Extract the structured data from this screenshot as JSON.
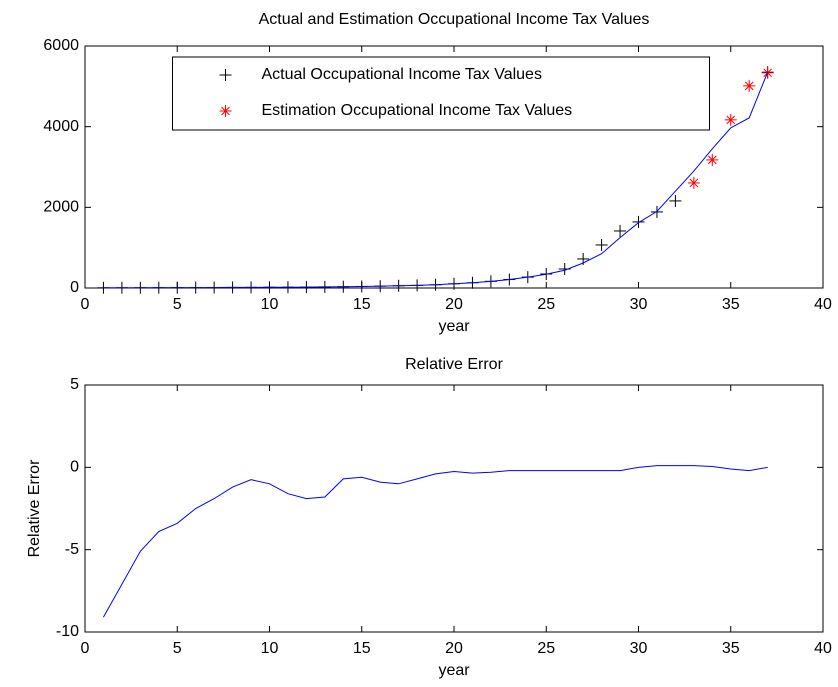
{
  "chart_data": [
    {
      "type": "line",
      "title": "Actual and Estimation Occupational Income Tax Values",
      "xlabel": "year",
      "x": [
        1,
        2,
        3,
        4,
        5,
        6,
        7,
        8,
        9,
        10,
        11,
        12,
        13,
        14,
        15,
        16,
        17,
        18,
        19,
        20,
        21,
        22,
        23,
        24,
        25,
        26,
        27,
        28,
        29,
        30,
        31,
        32,
        33,
        34,
        35,
        36,
        37
      ],
      "series": [
        {
          "name": "Actual Occupational Income Tax Values",
          "color": "#000000",
          "marker": "+",
          "values": [
            5,
            6,
            7,
            8,
            9,
            10,
            12,
            14,
            16,
            18,
            20,
            23,
            27,
            32,
            38,
            45,
            55,
            65,
            80,
            105,
            130,
            165,
            210,
            270,
            347,
            471,
            720,
            1067,
            1414,
            1638,
            1886,
            2159,
            null,
            null,
            null,
            null,
            5350
          ]
        },
        {
          "name": "Estimation Occupational Income Tax Values",
          "color": "#ff0000",
          "marker": "*",
          "values": [
            null,
            null,
            null,
            null,
            null,
            null,
            null,
            null,
            null,
            null,
            null,
            null,
            null,
            null,
            null,
            null,
            null,
            null,
            null,
            null,
            null,
            null,
            null,
            null,
            null,
            null,
            null,
            null,
            null,
            null,
            null,
            null,
            2605,
            3176,
            4169,
            5012,
            5335
          ]
        },
        {
          "color": "#0000ff",
          "marker": "line",
          "values": [
            5,
            6,
            7,
            8,
            9,
            10,
            12,
            14,
            16,
            18,
            20,
            23,
            27,
            32,
            38,
            45,
            55,
            65,
            80,
            105,
            130,
            165,
            210,
            270,
            340,
            440,
            620,
            850,
            1250,
            1620,
            1900,
            2400,
            2900,
            3450,
            3970,
            4218,
            5350
          ]
        }
      ],
      "xlim": [
        0,
        40
      ],
      "xticks": [
        0,
        5,
        10,
        15,
        20,
        25,
        30,
        35,
        40
      ],
      "ylim": [
        0,
        6000
      ],
      "yticks": [
        0,
        2000,
        4000,
        6000
      ],
      "legend": "top"
    },
    {
      "type": "line",
      "title": "Relative Error",
      "xlabel": "year",
      "ylabel": "Relative Error",
      "x": [
        1,
        2,
        3,
        4,
        5,
        6,
        7,
        8,
        9,
        10,
        11,
        12,
        13,
        14,
        15,
        16,
        17,
        18,
        19,
        20,
        21,
        22,
        23,
        24,
        25,
        26,
        27,
        28,
        29,
        30,
        31,
        32,
        33,
        34,
        35,
        36,
        37
      ],
      "series": [
        {
          "color": "#0000ff",
          "marker": "line",
          "values": [
            -9.1,
            -7.1,
            -5.1,
            -3.9,
            -3.4,
            -2.5,
            -1.9,
            -1.2,
            -0.75,
            -1.0,
            -1.6,
            -1.9,
            -1.8,
            -0.7,
            -0.6,
            -0.9,
            -1.0,
            -0.7,
            -0.4,
            -0.25,
            -0.35,
            -0.3,
            -0.2,
            -0.2,
            -0.2,
            -0.2,
            -0.2,
            -0.2,
            -0.2,
            0,
            0.1,
            0.1,
            0.1,
            0.05,
            -0.1,
            -0.2,
            0
          ]
        }
      ],
      "xlim": [
        0,
        40
      ],
      "xticks": [
        0,
        5,
        10,
        15,
        20,
        25,
        30,
        35,
        40
      ],
      "ylim": [
        -10,
        5
      ],
      "yticks": [
        -10,
        -5,
        0,
        5
      ]
    }
  ]
}
